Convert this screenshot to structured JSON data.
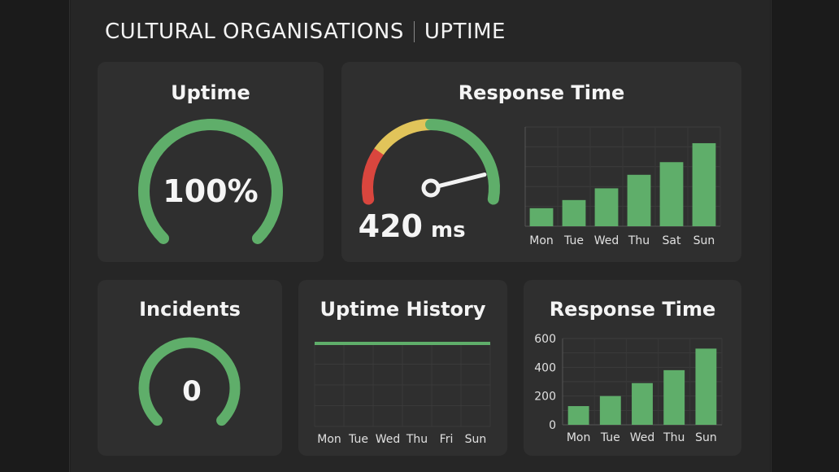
{
  "header": {
    "title": "CULTURAL ORGANISATIONS",
    "subtitle": "UPTIME"
  },
  "uptime_card": {
    "title": "Uptime",
    "value": "100%",
    "fraction": 1.0
  },
  "response_card": {
    "title": "Response Time",
    "value": "420",
    "unit": "ms",
    "gauge_level": 0.88,
    "chart_data": {
      "type": "bar",
      "categories": [
        "Mon",
        "Tue",
        "Wed",
        "Thu",
        "Sat",
        "Sun"
      ],
      "values": [
        20,
        29,
        42,
        57,
        71,
        92
      ],
      "ylim": [
        0,
        110
      ],
      "grid": true
    }
  },
  "incidents_card": {
    "title": "Incidents",
    "value": "0"
  },
  "history_card": {
    "title": "Uptime History",
    "chart_data": {
      "type": "line",
      "categories": [
        "Mon",
        "Tue",
        "Wed",
        "Thu",
        "Fri",
        "Sun"
      ],
      "values": [
        100,
        100,
        100,
        100,
        100,
        100
      ],
      "ylim": [
        0,
        100
      ],
      "grid": true
    }
  },
  "response_card_2": {
    "title": "Response Time",
    "chart_data": {
      "type": "bar",
      "categories": [
        "Mon",
        "Tue",
        "Wed",
        "Thu",
        "Sun"
      ],
      "values": [
        130,
        200,
        290,
        380,
        530
      ],
      "yticks": [
        "600",
        "400",
        "200",
        "0"
      ],
      "ylim": [
        0,
        600
      ],
      "grid": true
    }
  },
  "colors": {
    "green": "#5fae6a",
    "yellow": "#e1c45a",
    "red": "#d9463e",
    "card": "#2f2f2f",
    "grid": "#3d3d3d"
  }
}
